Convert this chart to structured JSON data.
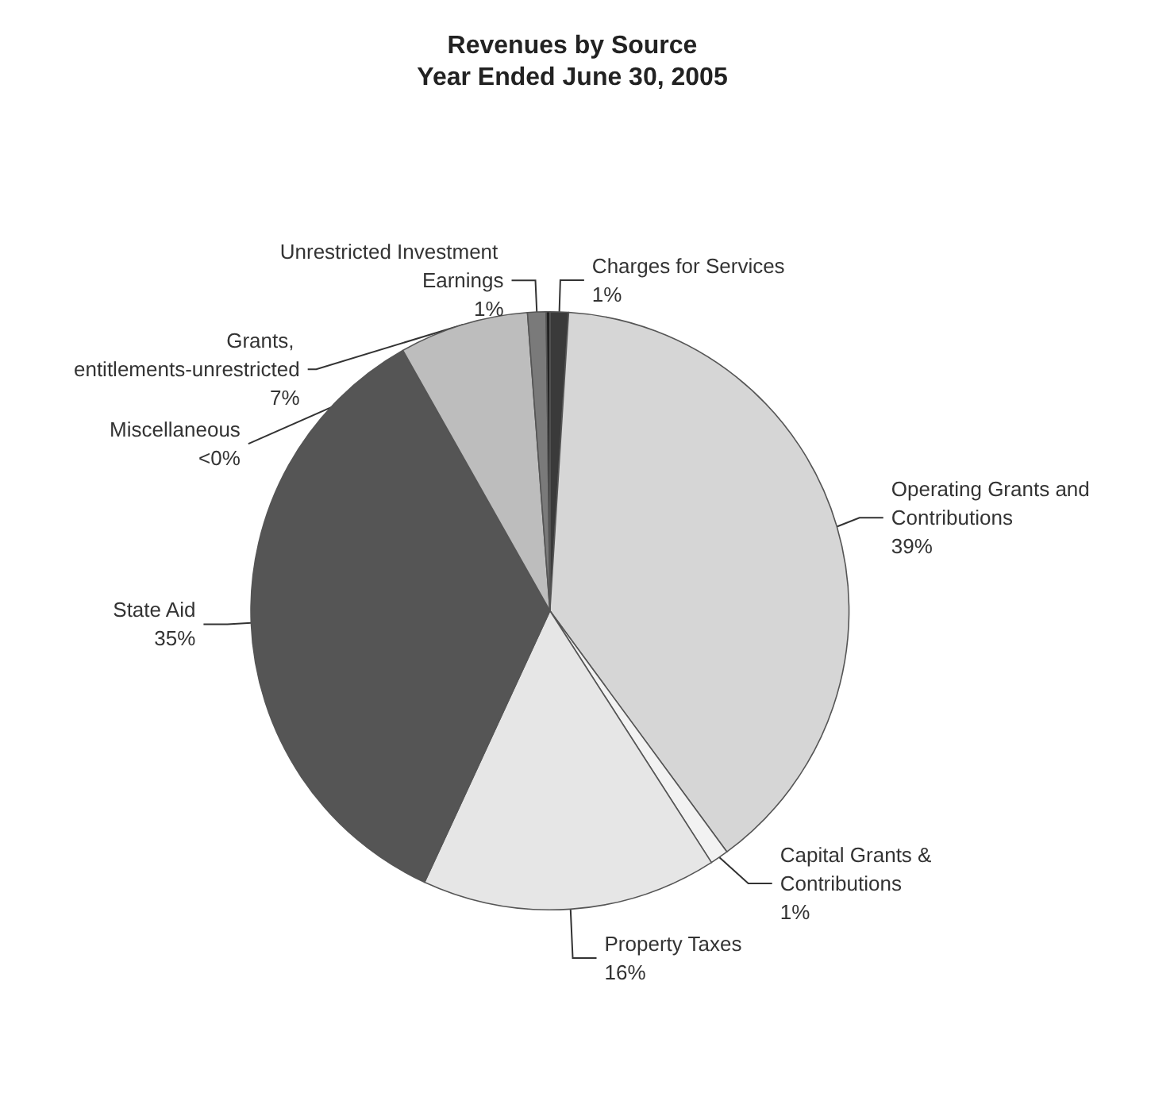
{
  "chart_data": {
    "type": "pie",
    "title": "Revenues by Source",
    "subtitle": "Year Ended June 30, 2005",
    "categories": [
      "Charges for Services",
      "Operating Grants and Contributions",
      "Capital Grants & Contributions",
      "Property Taxes",
      "State Aid",
      "Grants, entitlements-unrestricted",
      "Unrestricted Investment Earnings",
      "Miscellaneous"
    ],
    "values": [
      1,
      39,
      1,
      16,
      35,
      7,
      1,
      0.2
    ],
    "value_labels": [
      "1%",
      "39%",
      "1%",
      "16%",
      "35%",
      "7%",
      "1%",
      "<0%"
    ],
    "colors": [
      "#3a3a3a",
      "#d6d6d6",
      "#f2f2f2",
      "#e6e6e6",
      "#555555",
      "#bdbdbd",
      "#7a7a7a",
      "#222222"
    ],
    "legend": false
  }
}
